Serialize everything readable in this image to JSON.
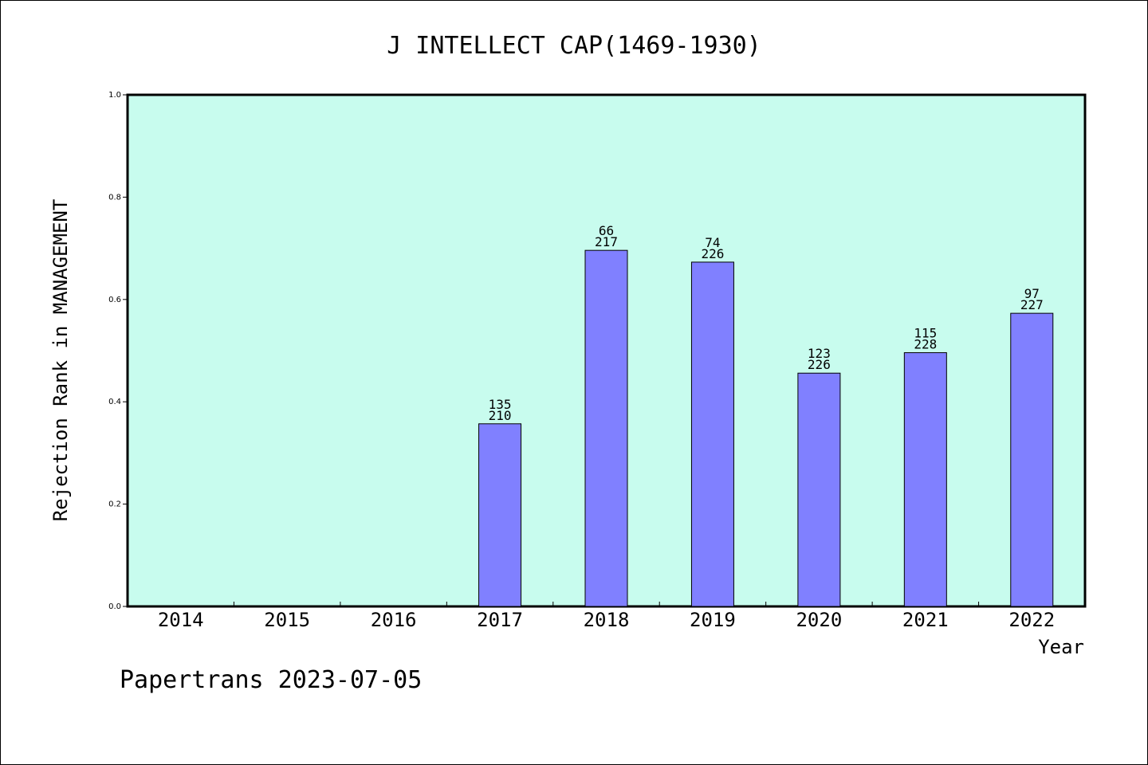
{
  "chart_data": {
    "type": "bar",
    "title": "J INTELLECT CAP(1469-1930)",
    "xlabel": "Year",
    "ylabel": "Rejection Rank in MANAGEMENT",
    "ylim": [
      0,
      1.0
    ],
    "yticks": [
      "0.0",
      "0.2",
      "0.4",
      "0.6",
      "0.8",
      "1.0"
    ],
    "categories": [
      "2014",
      "2015",
      "2016",
      "2017",
      "2018",
      "2019",
      "2020",
      "2021",
      "2022"
    ],
    "values": [
      null,
      null,
      null,
      0.357,
      0.696,
      0.673,
      0.456,
      0.496,
      0.573
    ],
    "labels_top": [
      "",
      "",
      "",
      "135",
      "66",
      "74",
      "123",
      "115",
      "97"
    ],
    "labels_bottom": [
      "",
      "",
      "",
      "210",
      "217",
      "226",
      "226",
      "228",
      "227"
    ],
    "colors": {
      "plot_background": "#c8fcee",
      "bar": "#8080ff"
    },
    "grid": false
  },
  "footer": {
    "text": "Papertrans 2023-07-05"
  }
}
